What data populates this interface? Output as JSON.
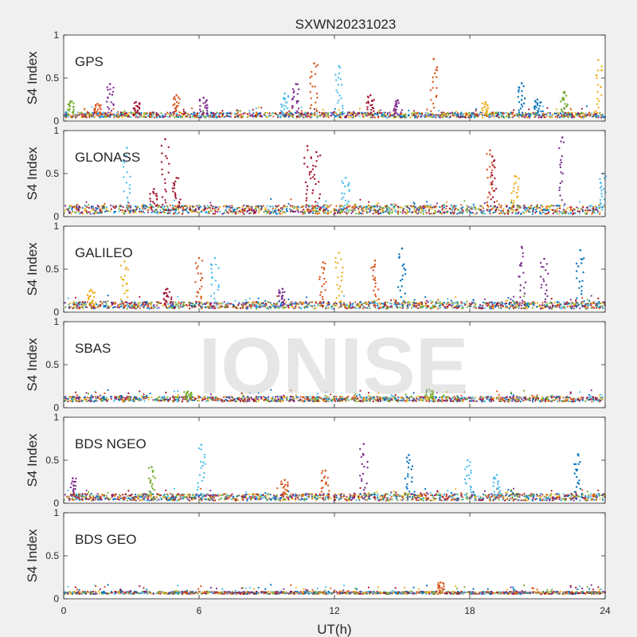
{
  "figure": {
    "background": "#f0f0f0",
    "axes_background": "#ffffff"
  },
  "chart_data": {
    "type": "scatter",
    "title": "SXWN20231023",
    "xlabel": "UT(h)",
    "xlim": [
      0,
      24
    ],
    "xticks": [
      0,
      6,
      12,
      18,
      24
    ],
    "watermark": "IONISE",
    "series_colors": [
      "#0072BD",
      "#D95319",
      "#EDB120",
      "#7E2F8E",
      "#77AC30",
      "#4DBEEE",
      "#A2142F"
    ],
    "panels": [
      {
        "name": "GPS",
        "ylabel": "S4 Index",
        "ylim": [
          0,
          1
        ],
        "yticks": [
          "0",
          "0.5",
          "1"
        ],
        "baseline": 0.07,
        "baseline_spread": 0.03,
        "spikes": [
          {
            "x": 0.3,
            "y": 0.23,
            "series": 4
          },
          {
            "x": 1.5,
            "y": 0.2,
            "series": 1
          },
          {
            "x": 2.05,
            "y": 0.43,
            "series": 3
          },
          {
            "x": 3.2,
            "y": 0.22,
            "series": 6
          },
          {
            "x": 5.0,
            "y": 0.3,
            "series": 1
          },
          {
            "x": 6.2,
            "y": 0.27,
            "series": 3
          },
          {
            "x": 9.8,
            "y": 0.32,
            "series": 5
          },
          {
            "x": 10.3,
            "y": 0.43,
            "series": 3
          },
          {
            "x": 11.1,
            "y": 0.67,
            "series": 1
          },
          {
            "x": 12.2,
            "y": 0.64,
            "series": 5
          },
          {
            "x": 13.6,
            "y": 0.3,
            "series": 6
          },
          {
            "x": 14.8,
            "y": 0.24,
            "series": 3
          },
          {
            "x": 16.4,
            "y": 0.72,
            "series": 1
          },
          {
            "x": 18.7,
            "y": 0.22,
            "series": 2
          },
          {
            "x": 20.3,
            "y": 0.44,
            "series": 0
          },
          {
            "x": 21.0,
            "y": 0.25,
            "series": 0
          },
          {
            "x": 22.2,
            "y": 0.34,
            "series": 4
          },
          {
            "x": 23.7,
            "y": 0.71,
            "series": 2
          }
        ]
      },
      {
        "name": "GLONASS",
        "ylabel": "S4 Index",
        "ylim": [
          0,
          1
        ],
        "yticks": [
          "0",
          "0.5",
          "1"
        ],
        "baseline": 0.08,
        "baseline_spread": 0.05,
        "spikes": [
          {
            "x": 2.8,
            "y": 0.8,
            "series": 5
          },
          {
            "x": 4.0,
            "y": 0.32,
            "series": 6
          },
          {
            "x": 4.5,
            "y": 0.9,
            "series": 6
          },
          {
            "x": 5.0,
            "y": 0.45,
            "series": 6
          },
          {
            "x": 10.8,
            "y": 0.82,
            "series": 6
          },
          {
            "x": 11.2,
            "y": 0.75,
            "series": 6
          },
          {
            "x": 12.5,
            "y": 0.45,
            "series": 5
          },
          {
            "x": 18.9,
            "y": 0.77,
            "series": 1
          },
          {
            "x": 19.0,
            "y": 0.7,
            "series": 6
          },
          {
            "x": 20.0,
            "y": 0.47,
            "series": 2
          },
          {
            "x": 22.1,
            "y": 0.92,
            "series": 3
          },
          {
            "x": 23.9,
            "y": 0.5,
            "series": 5
          }
        ]
      },
      {
        "name": "GALILEO",
        "ylabel": "S4 Index",
        "ylim": [
          0,
          1
        ],
        "yticks": [
          "0",
          "0.5",
          "1"
        ],
        "baseline": 0.08,
        "baseline_spread": 0.04,
        "spikes": [
          {
            "x": 1.2,
            "y": 0.26,
            "series": 2
          },
          {
            "x": 2.7,
            "y": 0.59,
            "series": 2
          },
          {
            "x": 4.6,
            "y": 0.27,
            "series": 6
          },
          {
            "x": 6.0,
            "y": 0.63,
            "series": 1
          },
          {
            "x": 6.7,
            "y": 0.63,
            "series": 5
          },
          {
            "x": 9.7,
            "y": 0.27,
            "series": 3
          },
          {
            "x": 11.5,
            "y": 0.58,
            "series": 1
          },
          {
            "x": 12.2,
            "y": 0.69,
            "series": 2
          },
          {
            "x": 13.8,
            "y": 0.6,
            "series": 1
          },
          {
            "x": 15.0,
            "y": 0.74,
            "series": 0
          },
          {
            "x": 20.3,
            "y": 0.76,
            "series": 3
          },
          {
            "x": 21.3,
            "y": 0.62,
            "series": 3
          },
          {
            "x": 22.9,
            "y": 0.72,
            "series": 0
          }
        ]
      },
      {
        "name": "SBAS",
        "ylabel": "S4 Index",
        "ylim": [
          0,
          1
        ],
        "yticks": [
          "0",
          "0.5",
          "1"
        ],
        "baseline": 0.1,
        "baseline_spread": 0.03,
        "spikes": [
          {
            "x": 5.5,
            "y": 0.19,
            "series": 4
          },
          {
            "x": 16.2,
            "y": 0.21,
            "series": 4
          }
        ]
      },
      {
        "name": "BDS NGEO",
        "ylabel": "S4 Index",
        "ylim": [
          0,
          1
        ],
        "yticks": [
          "0",
          "0.5",
          "1"
        ],
        "baseline": 0.07,
        "baseline_spread": 0.04,
        "spikes": [
          {
            "x": 0.4,
            "y": 0.29,
            "series": 3
          },
          {
            "x": 3.9,
            "y": 0.42,
            "series": 4
          },
          {
            "x": 6.1,
            "y": 0.68,
            "series": 5
          },
          {
            "x": 9.8,
            "y": 0.27,
            "series": 1
          },
          {
            "x": 11.6,
            "y": 0.38,
            "series": 1
          },
          {
            "x": 13.3,
            "y": 0.69,
            "series": 3
          },
          {
            "x": 15.3,
            "y": 0.56,
            "series": 0
          },
          {
            "x": 17.9,
            "y": 0.5,
            "series": 5
          },
          {
            "x": 19.2,
            "y": 0.33,
            "series": 5
          },
          {
            "x": 22.8,
            "y": 0.57,
            "series": 0
          }
        ]
      },
      {
        "name": "BDS GEO",
        "ylabel": "S4 Index",
        "ylim": [
          0,
          1
        ],
        "yticks": [
          "0",
          "0.5",
          "1"
        ],
        "baseline": 0.07,
        "baseline_spread": 0.015,
        "spikes": [
          {
            "x": 16.7,
            "y": 0.19,
            "series": 1
          }
        ]
      }
    ]
  }
}
